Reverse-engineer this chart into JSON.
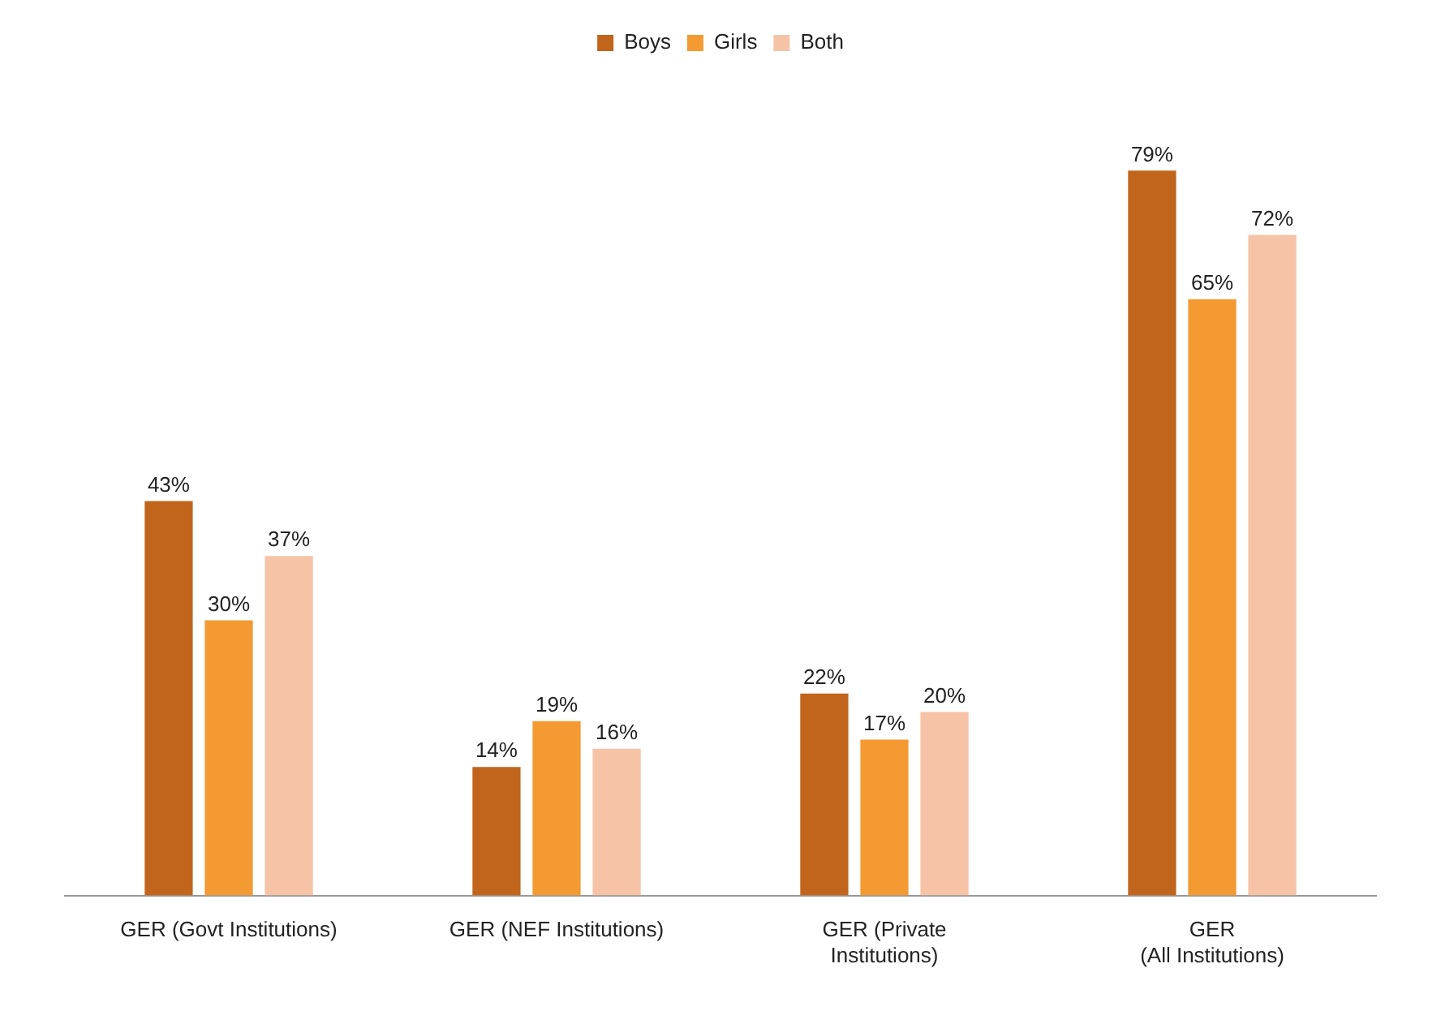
{
  "chart_data": {
    "type": "bar",
    "categories": [
      "GER (Govt Institutions)",
      "GER (NEF Institutions)",
      "GER (Private\nInstitutions)",
      "GER\n(All Institutions)"
    ],
    "series": [
      {
        "name": "Boys",
        "color": "#c2651c",
        "values": [
          43,
          14,
          22,
          79
        ],
        "value_labels": [
          "43%",
          "14%",
          "22%",
          "79%"
        ]
      },
      {
        "name": "Girls",
        "color": "#f39a32",
        "values": [
          30,
          19,
          17,
          65
        ],
        "value_labels": [
          "30%",
          "19%",
          "17%",
          "65%"
        ]
      },
      {
        "name": "Both",
        "color": "#f7c3a6",
        "values": [
          37,
          16,
          20,
          72
        ],
        "value_labels": [
          "37%",
          "16%",
          "20%",
          "72%"
        ]
      }
    ],
    "legend": "top",
    "grid": false
  }
}
